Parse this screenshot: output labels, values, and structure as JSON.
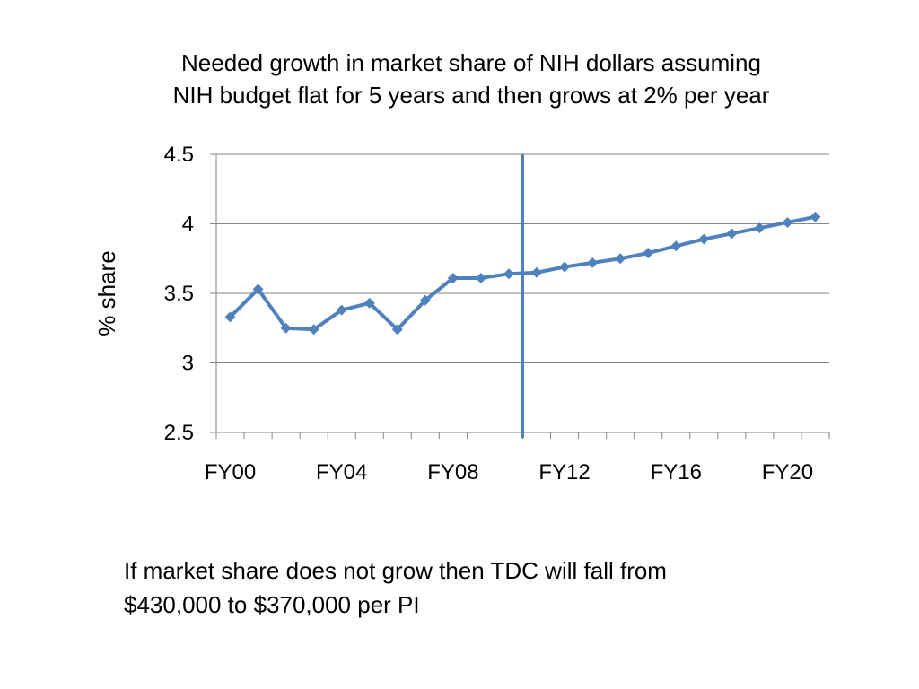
{
  "slide": {
    "title_lines": [
      "Needed growth in market share of NIH dollars assuming",
      "NIH budget flat for 5 years and then grows at 2% per year"
    ],
    "note_lines": [
      "If market share does not grow then TDC will fall from",
      "$430,000 to $370,000 per PI"
    ]
  },
  "colors": {
    "series": "#4f81bd",
    "divider": "#4f81bd",
    "grid": "#868686",
    "axis": "#868686"
  },
  "chart_data": {
    "type": "line",
    "title": "Needed growth in market share of NIH dollars assuming NIH budget flat for 5 years and then grows at 2% per year",
    "ylabel": "% share",
    "xlabel": "",
    "ylim": [
      2.5,
      4.5
    ],
    "yticks": [
      2.5,
      3,
      3.5,
      4,
      4.5
    ],
    "grid": true,
    "legend": "none",
    "categories": [
      "FY00",
      "FY01",
      "FY02",
      "FY03",
      "FY04",
      "FY05",
      "FY06",
      "FY07",
      "FY08",
      "FY09",
      "FY10",
      "FY11",
      "FY12",
      "FY13",
      "FY14",
      "FY15",
      "FY16",
      "FY17",
      "FY18",
      "FY19",
      "FY20",
      "FY21"
    ],
    "x_tick_labels": [
      "FY00",
      "FY04",
      "FY08",
      "FY12",
      "FY16",
      "FY20"
    ],
    "values": [
      3.33,
      3.53,
      3.25,
      3.24,
      3.38,
      3.43,
      3.24,
      3.45,
      3.61,
      3.61,
      3.64,
      3.65,
      3.69,
      3.72,
      3.75,
      3.79,
      3.84,
      3.89,
      3.93,
      3.97,
      4.01,
      4.05
    ],
    "vertical_marker": {
      "between": [
        "FY10",
        "FY11"
      ]
    }
  }
}
